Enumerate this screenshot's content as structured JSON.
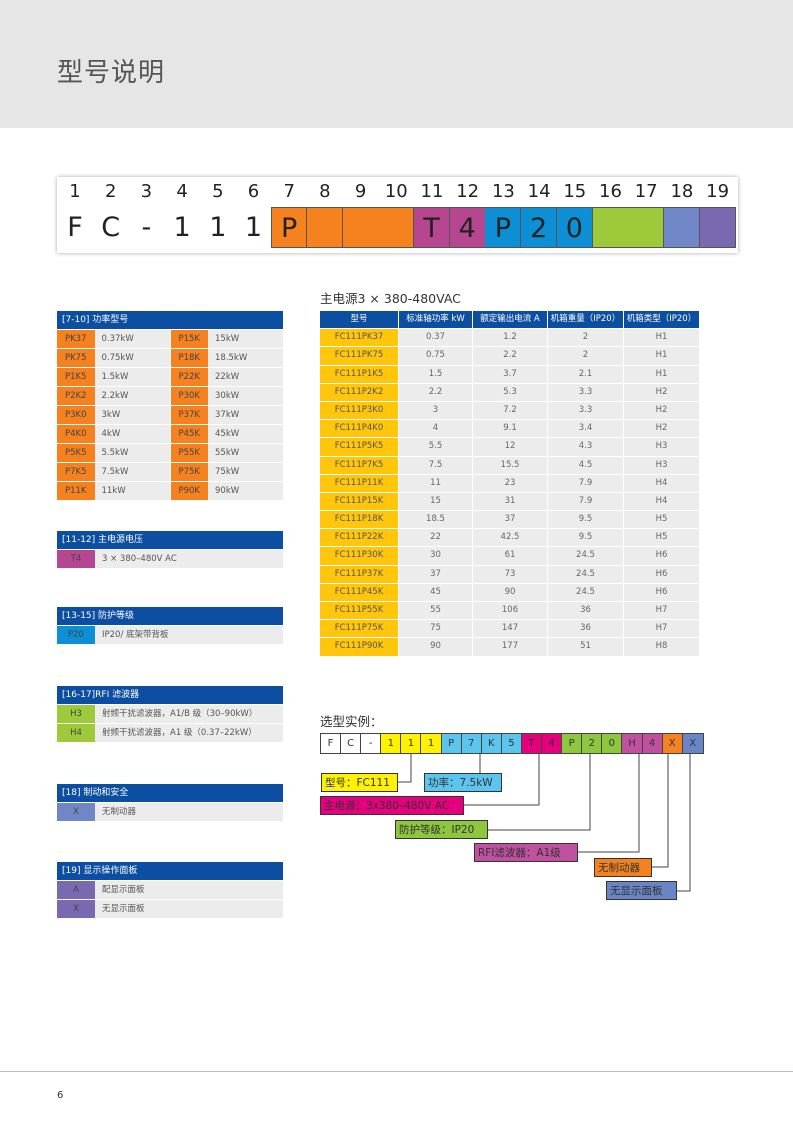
{
  "title": "型号说明",
  "codebar": {
    "numbers": [
      "1",
      "2",
      "3",
      "4",
      "5",
      "6",
      "7",
      "8",
      "9",
      "10",
      "11",
      "12",
      "13",
      "14",
      "15",
      "16",
      "17",
      "18",
      "19"
    ],
    "chars": [
      "F",
      "C",
      "-",
      "1",
      "1",
      "1",
      "P",
      "",
      "",
      "",
      "T",
      "4",
      "P",
      "2",
      "0",
      "",
      "",
      "",
      ""
    ],
    "colors": [
      "",
      "",
      "",
      "",
      "",
      "",
      "#f5821f",
      "#f5821f",
      "#f5821f",
      "#f5821f",
      "#b5468f",
      "#b5468f",
      "#0d8fd6",
      "#0d8fd6",
      "#0d8fd6",
      "#9dc93b",
      "#9dc93b",
      "#6f87c6",
      "#7a68b0"
    ]
  },
  "left_tables": [
    {
      "header": "[7-10] 功率型号",
      "color": "#f5821f",
      "two_col": true,
      "rows": [
        [
          "PK37",
          "0.37kW",
          "P15K",
          "15kW"
        ],
        [
          "PK75",
          "0.75kW",
          "P18K",
          "18.5kW"
        ],
        [
          "P1K5",
          "1.5kW",
          "P22K",
          "22kW"
        ],
        [
          "P2K2",
          "2.2kW",
          "P30K",
          "30kW"
        ],
        [
          "P3K0",
          "3kW",
          "P37K",
          "37kW"
        ],
        [
          "P4K0",
          "4kW",
          "P45K",
          "45kW"
        ],
        [
          "P5K5",
          "5.5kW",
          "P55K",
          "55kW"
        ],
        [
          "P7K5",
          "7.5kW",
          "P75K",
          "75kW"
        ],
        [
          "P11K",
          "11kW",
          "P90K",
          "90kW"
        ]
      ]
    },
    {
      "header": "[11-12] 主电源电压",
      "color": "#b5468f",
      "rows": [
        [
          "T4",
          "3 × 380–480V AC"
        ]
      ]
    },
    {
      "header": "[13-15] 防护等级",
      "color": "#0d8fd6",
      "rows": [
        [
          "P20",
          "IP20/ 底架带背板"
        ]
      ]
    },
    {
      "header": "[16-17]RFI 滤波器",
      "color": "#9dc93b",
      "rows": [
        [
          "H3",
          "射频干扰滤波器，A1/B 级（30–90kW）"
        ],
        [
          "H4",
          "射频干扰滤波器，A1 级（0.37–22kW）"
        ]
      ]
    },
    {
      "header": "[18] 制动和安全",
      "color": "#6f87c6",
      "rows": [
        [
          "X",
          "无制动器"
        ]
      ]
    },
    {
      "header": "[19] 显示操作面板",
      "color": "#7a68b0",
      "rows": [
        [
          "A",
          "配显示面板"
        ],
        [
          "X",
          "无显示面板"
        ]
      ]
    }
  ],
  "spec_table": {
    "title": "主电源3 × 380-480VAC",
    "columns": [
      "型号",
      "标准轴功率 kW",
      "额定输出电流 A",
      "机箱重量（IP20）",
      "机箱类型（IP20）"
    ],
    "rows": [
      [
        "FC111PK37",
        "0.37",
        "1.2",
        "2",
        "H1"
      ],
      [
        "FC111PK75",
        "0.75",
        "2.2",
        "2",
        "H1"
      ],
      [
        "FC111P1K5",
        "1.5",
        "3.7",
        "2.1",
        "H1"
      ],
      [
        "FC111P2K2",
        "2.2",
        "5.3",
        "3.3",
        "H2"
      ],
      [
        "FC111P3K0",
        "3",
        "7.2",
        "3.3",
        "H2"
      ],
      [
        "FC111P4K0",
        "4",
        "9.1",
        "3.4",
        "H2"
      ],
      [
        "FC111P5K5",
        "5.5",
        "12",
        "4.3",
        "H3"
      ],
      [
        "FC111P7K5",
        "7.5",
        "15.5",
        "4.5",
        "H3"
      ],
      [
        "FC111P11K",
        "11",
        "23",
        "7.9",
        "H4"
      ],
      [
        "FC111P15K",
        "15",
        "31",
        "7.9",
        "H4"
      ],
      [
        "FC111P18K",
        "18.5",
        "37",
        "9.5",
        "H5"
      ],
      [
        "FC111P22K",
        "22",
        "42.5",
        "9.5",
        "H5"
      ],
      [
        "FC111P30K",
        "30",
        "61",
        "24.5",
        "H6"
      ],
      [
        "FC111P37K",
        "37",
        "73",
        "24.5",
        "H6"
      ],
      [
        "FC111P45K",
        "45",
        "90",
        "24.5",
        "H6"
      ],
      [
        "FC111P55K",
        "55",
        "106",
        "36",
        "H7"
      ],
      [
        "FC111P75K",
        "75",
        "147",
        "36",
        "H7"
      ],
      [
        "FC111P90K",
        "90",
        "177",
        "51",
        "H8"
      ]
    ]
  },
  "example": {
    "title": "选型实例：",
    "chars": [
      "F",
      "C",
      "-",
      "1",
      "1",
      "1",
      "P",
      "7",
      "K",
      "5",
      "T",
      "4",
      "P",
      "2",
      "0",
      "H",
      "4",
      "X",
      "X"
    ],
    "colors": [
      "#fff",
      "#fff",
      "#fff",
      "#fff200",
      "#fff200",
      "#fff200",
      "#5bc5ee",
      "#5bc5ee",
      "#5bc5ee",
      "#5bc5ee",
      "#e5007e",
      "#e5007e",
      "#8dc63f",
      "#8dc63f",
      "#8dc63f",
      "#c050a0",
      "#c050a0",
      "#f58220",
      "#6a85c5"
    ],
    "labels": [
      {
        "text": "型号：FC111",
        "color": "#fff200"
      },
      {
        "text": "功率：7.5kW",
        "color": "#5bc5ee"
      },
      {
        "text": "主电源：3x380–480V AC",
        "color": "#e5007e"
      },
      {
        "text": "防护等级：IP20",
        "color": "#8dc63f"
      },
      {
        "text": "RFI滤波器：A1级",
        "color": "#c050a0"
      },
      {
        "text": "无制动器",
        "color": "#f58220"
      },
      {
        "text": "无显示面板",
        "color": "#6a85c5"
      }
    ]
  },
  "page_number": "6"
}
